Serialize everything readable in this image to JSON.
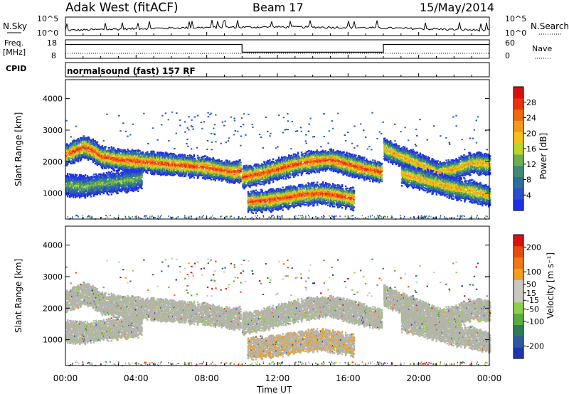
{
  "header": {
    "station": "Adak West (fitACF)",
    "beam": "Beam 17",
    "date": "15/May/2014"
  },
  "top_panels": {
    "nsky_label": "N.Sky",
    "nsearch_label": "N.Search",
    "count_ticks_left": [
      "10^5",
      "10^0"
    ],
    "count_ticks_right": [
      "10^5",
      "10^0"
    ],
    "freq_label": "Freq.",
    "freq_unit": "[MHz]",
    "freq_ticks": [
      "18",
      "8"
    ],
    "nave_label": "Nave",
    "nave_ticks": [
      "60",
      "0"
    ],
    "cpid_label": "CPID",
    "cpid_text": "normalsound (fast) 157 RF"
  },
  "colors": {
    "power_scale": [
      "#1f2ee8",
      "#2a4fc8",
      "#2c6e9c",
      "#3f8a74",
      "#6bb04c",
      "#b9d62a",
      "#f2c21a",
      "#f59a18",
      "#f06a10",
      "#e8340c",
      "#d80f0f"
    ],
    "velocity_scale": [
      "#1f35b0",
      "#2c5a9c",
      "#2d7a58",
      "#5aaa3c",
      "#8fd04a",
      "#c8c8c0",
      "#c8c8c0",
      "#f0a020",
      "#f07818",
      "#e84a10",
      "#d81010"
    ],
    "ground_scatter": "#b4b4ac"
  },
  "chart_data": [
    {
      "type": "heatmap",
      "name": "power",
      "ylabel": "Slant Range [km]",
      "yticks": [
        1000,
        2000,
        3000,
        4000
      ],
      "ylim": [
        180,
        4600
      ],
      "colorbar_label": "Power [dB]",
      "colorbar_ticks": [
        4,
        8,
        12,
        16,
        20,
        24,
        28
      ],
      "colorbar_range": [
        0,
        32
      ],
      "layers": [
        {
          "t": [
            0,
            1,
            1.5,
            2,
            3,
            4,
            5,
            6,
            7,
            8,
            9,
            9.5,
            9.9
          ],
          "r": [
            2200,
            2450,
            2350,
            2150,
            2050,
            2000,
            1950,
            1900,
            1850,
            1800,
            1700,
            1650,
            1700
          ],
          "peak_db": 28
        },
        {
          "t": [
            0,
            1,
            2,
            3,
            3.8,
            4.3
          ],
          "r": [
            1250,
            1200,
            1300,
            1350,
            1400,
            1450
          ],
          "peak_db": 14
        },
        {
          "t": [
            10,
            11,
            12,
            13,
            14,
            15,
            16,
            17,
            17.9
          ],
          "r": [
            1500,
            1600,
            1750,
            1900,
            2000,
            2050,
            1900,
            1750,
            1650
          ],
          "peak_db": 28
        },
        {
          "t": [
            10.3,
            11.5,
            12.5,
            13.5,
            14.5,
            15.5,
            16.3
          ],
          "r": [
            720,
            760,
            850,
            950,
            980,
            900,
            800
          ],
          "peak_db": 28
        },
        {
          "t": [
            18,
            19,
            20,
            21,
            22,
            23,
            24
          ],
          "r": [
            2400,
            2150,
            1900,
            1650,
            1750,
            1950,
            1900
          ],
          "peak_db": 22
        },
        {
          "t": [
            19,
            20,
            21,
            22,
            23,
            24
          ],
          "r": [
            1600,
            1450,
            1300,
            1150,
            1050,
            900
          ],
          "peak_db": 22
        }
      ]
    },
    {
      "type": "heatmap",
      "name": "velocity",
      "ylabel": "Slant Range [km]",
      "yticks": [
        1000,
        2000,
        3000,
        4000
      ],
      "ylim": [
        180,
        4600
      ],
      "colorbar_label": "Velocity [m s⁻¹]",
      "colorbar_ticks": [
        200,
        100,
        50,
        15,
        -15,
        -50,
        -100,
        -200
      ],
      "colorbar_range": [
        -250,
        250
      ]
    }
  ],
  "x_axis": {
    "label": "Time UT",
    "ticks": [
      "00:00",
      "04:00",
      "08:00",
      "12:00",
      "16:00",
      "20:00",
      "00:00"
    ],
    "range_hours": [
      0,
      24
    ]
  },
  "freq_series": {
    "t": [
      0,
      10,
      10,
      18,
      18,
      24
    ],
    "mhz": [
      15.5,
      15.5,
      11.3,
      11.3,
      15.5,
      15.5
    ]
  }
}
